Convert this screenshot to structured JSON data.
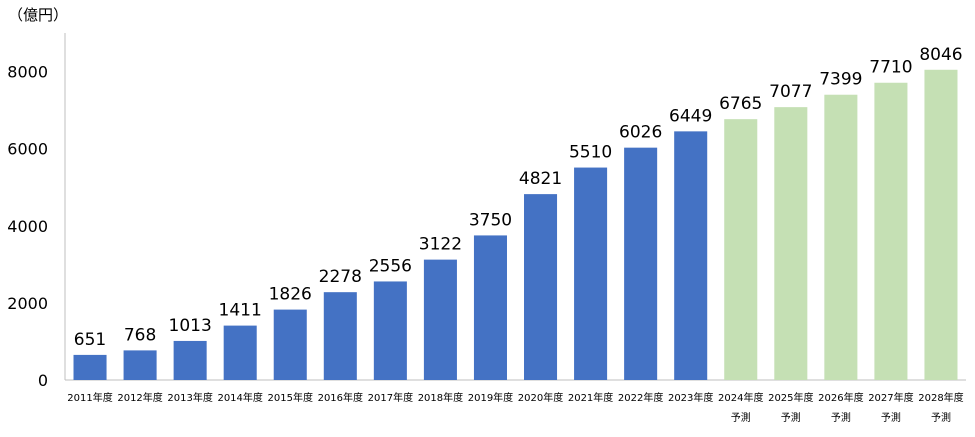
{
  "chart_data": {
    "type": "bar",
    "ylabel": "（億円）",
    "ylim": [
      0,
      9000
    ],
    "yticks": [
      0,
      2000,
      4000,
      6000,
      8000
    ],
    "grid": false,
    "categories": [
      [
        "2011年度"
      ],
      [
        "2012年度"
      ],
      [
        "2013年度"
      ],
      [
        "2014年度"
      ],
      [
        "2015年度"
      ],
      [
        "2016年度"
      ],
      [
        "2017年度"
      ],
      [
        "2018年度"
      ],
      [
        "2019年度"
      ],
      [
        "2020年度"
      ],
      [
        "2021年度"
      ],
      [
        "2022年度"
      ],
      [
        "2023年度"
      ],
      [
        "2024年度",
        "予測"
      ],
      [
        "2025年度",
        "予測"
      ],
      [
        "2026年度",
        "予測"
      ],
      [
        "2027年度",
        "予測"
      ],
      [
        "2028年度",
        "予測"
      ]
    ],
    "values": [
      651,
      768,
      1013,
      1411,
      1826,
      2278,
      2556,
      3122,
      3750,
      4821,
      5510,
      6026,
      6449,
      6765,
      7077,
      7399,
      7710,
      8046
    ],
    "bar_kinds": [
      "actual",
      "actual",
      "actual",
      "actual",
      "actual",
      "actual",
      "actual",
      "actual",
      "actual",
      "actual",
      "actual",
      "actual",
      "actual",
      "forecast",
      "forecast",
      "forecast",
      "forecast",
      "forecast"
    ],
    "colors": {
      "actual": "#4472c4",
      "forecast": "#c5e0b4",
      "axis": "#bfbfbf"
    }
  }
}
